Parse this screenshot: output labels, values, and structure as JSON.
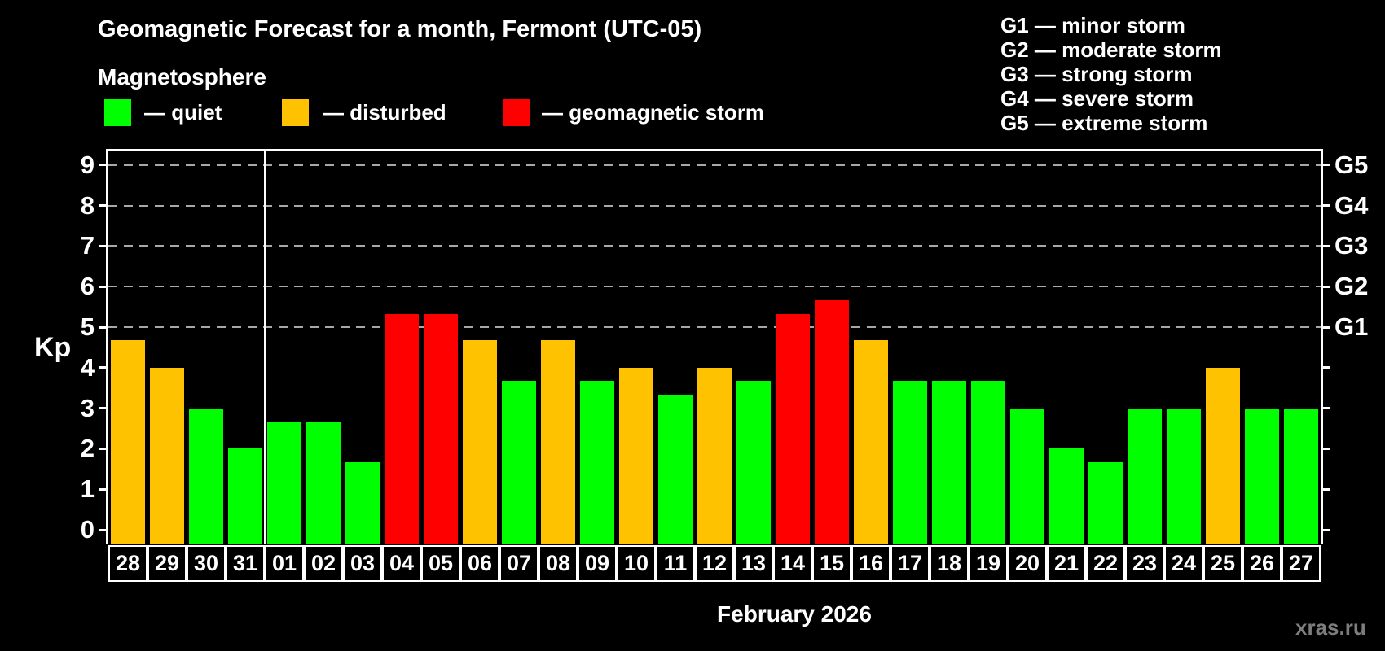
{
  "header": {
    "title": "Geomagnetic Forecast for a month, Fermont (UTC-05)",
    "subtitle": "Magnetosphere"
  },
  "legend": {
    "items": [
      {
        "label": "— quiet",
        "color": "#00ff00"
      },
      {
        "label": "— disturbed",
        "color": "#ffc200"
      },
      {
        "label": "— geomagnetic storm",
        "color": "#ff0000"
      }
    ]
  },
  "storm_scale": {
    "lines": [
      "G1 — minor storm",
      "G2 — moderate storm",
      "G3 — strong storm",
      "G4 — severe storm",
      "G5 — extreme storm"
    ]
  },
  "watermark": "xras.ru",
  "chart_data": {
    "type": "bar",
    "title": "Geomagnetic Forecast for a month, Fermont (UTC-05)",
    "ylabel": "Kp",
    "xlabel": "February 2026",
    "ylim": [
      0,
      9
    ],
    "grid": "dashed horizontal lines at storm levels only",
    "grid_levels": [
      5,
      6,
      7,
      8,
      9
    ],
    "right_axis_labels": {
      "5": "G1",
      "6": "G2",
      "7": "G3",
      "8": "G4",
      "9": "G5"
    },
    "month_divider_after_index": 3,
    "categories": [
      "28",
      "29",
      "30",
      "31",
      "01",
      "02",
      "03",
      "04",
      "05",
      "06",
      "07",
      "08",
      "09",
      "10",
      "11",
      "12",
      "13",
      "14",
      "15",
      "16",
      "17",
      "18",
      "19",
      "20",
      "21",
      "22",
      "23",
      "24",
      "25",
      "26",
      "27"
    ],
    "values": [
      4.67,
      4,
      3,
      2,
      2.67,
      2.67,
      1.67,
      5.33,
      5.33,
      4.67,
      3.67,
      4.67,
      3.67,
      4,
      3.33,
      4,
      3.67,
      5.33,
      5.67,
      4.67,
      3.67,
      3.67,
      3.67,
      3,
      2,
      1.67,
      3,
      3,
      4,
      3,
      3
    ],
    "statuses": [
      "disturbed",
      "disturbed",
      "quiet",
      "quiet",
      "quiet",
      "quiet",
      "quiet",
      "storm",
      "storm",
      "disturbed",
      "quiet",
      "disturbed",
      "quiet",
      "disturbed",
      "quiet",
      "disturbed",
      "quiet",
      "storm",
      "storm",
      "disturbed",
      "quiet",
      "quiet",
      "quiet",
      "quiet",
      "quiet",
      "quiet",
      "quiet",
      "quiet",
      "disturbed",
      "quiet",
      "quiet"
    ],
    "colors": {
      "quiet": "#00ff00",
      "disturbed": "#ffc200",
      "storm": "#ff0000"
    }
  }
}
